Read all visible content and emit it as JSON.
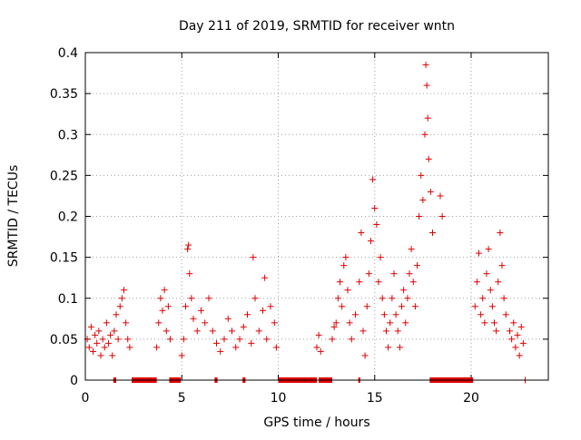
{
  "chart_data": {
    "type": "scatter",
    "title": "Day 211 of 2019, SRMTID for receiver wntn",
    "xlabel": "GPS time / hours",
    "ylabel": "SRMTID / TECUs",
    "xlim": [
      0,
      24
    ],
    "ylim": [
      0,
      0.4
    ],
    "xticks": [
      "0",
      "5",
      "10",
      "15",
      "20"
    ],
    "yticks": [
      "0",
      "0.05",
      "0.1",
      "0.15",
      "0.2",
      "0.25",
      "0.3",
      "0.35",
      "0.4"
    ],
    "grid": true,
    "marker": "+",
    "color": "#e00000",
    "series": [
      {
        "name": "SRMTID",
        "points": [
          [
            0.1,
            0.05
          ],
          [
            0.2,
            0.04
          ],
          [
            0.3,
            0.065
          ],
          [
            0.4,
            0.035
          ],
          [
            0.5,
            0.055
          ],
          [
            0.6,
            0.045
          ],
          [
            0.7,
            0.06
          ],
          [
            0.8,
            0.03
          ],
          [
            0.9,
            0.05
          ],
          [
            1.0,
            0.04
          ],
          [
            1.1,
            0.07
          ],
          [
            1.2,
            0.045
          ],
          [
            1.3,
            0.055
          ],
          [
            1.4,
            0.03
          ],
          [
            1.5,
            0.06
          ],
          [
            1.6,
            0.08
          ],
          [
            1.7,
            0.05
          ],
          [
            1.8,
            0.09
          ],
          [
            1.9,
            0.1
          ],
          [
            2.0,
            0.11
          ],
          [
            2.1,
            0.07
          ],
          [
            2.2,
            0.05
          ],
          [
            2.3,
            0.04
          ],
          [
            3.7,
            0.04
          ],
          [
            3.8,
            0.07
          ],
          [
            3.9,
            0.1
          ],
          [
            4.0,
            0.085
          ],
          [
            4.1,
            0.11
          ],
          [
            4.2,
            0.06
          ],
          [
            4.3,
            0.09
          ],
          [
            4.4,
            0.05
          ],
          [
            5.0,
            0.03
          ],
          [
            5.1,
            0.05
          ],
          [
            5.2,
            0.09
          ],
          [
            5.3,
            0.16
          ],
          [
            5.35,
            0.165
          ],
          [
            5.4,
            0.13
          ],
          [
            5.5,
            0.1
          ],
          [
            5.6,
            0.075
          ],
          [
            5.8,
            0.06
          ],
          [
            6.0,
            0.085
          ],
          [
            6.2,
            0.07
          ],
          [
            6.4,
            0.1
          ],
          [
            6.6,
            0.06
          ],
          [
            6.8,
            0.045
          ],
          [
            7.0,
            0.035
          ],
          [
            7.2,
            0.05
          ],
          [
            7.4,
            0.075
          ],
          [
            7.6,
            0.06
          ],
          [
            7.8,
            0.04
          ],
          [
            8.0,
            0.05
          ],
          [
            8.2,
            0.065
          ],
          [
            8.4,
            0.08
          ],
          [
            8.6,
            0.045
          ],
          [
            8.7,
            0.15
          ],
          [
            8.8,
            0.1
          ],
          [
            9.0,
            0.06
          ],
          [
            9.2,
            0.085
          ],
          [
            9.3,
            0.125
          ],
          [
            9.4,
            0.05
          ],
          [
            9.6,
            0.09
          ],
          [
            9.8,
            0.07
          ],
          [
            9.9,
            0.04
          ],
          [
            12.0,
            0.04
          ],
          [
            12.1,
            0.055
          ],
          [
            12.2,
            0.035
          ],
          [
            12.8,
            0.05
          ],
          [
            12.9,
            0.065
          ],
          [
            13.0,
            0.07
          ],
          [
            13.1,
            0.1
          ],
          [
            13.2,
            0.12
          ],
          [
            13.3,
            0.09
          ],
          [
            13.4,
            0.14
          ],
          [
            13.5,
            0.15
          ],
          [
            13.6,
            0.11
          ],
          [
            13.7,
            0.07
          ],
          [
            13.8,
            0.05
          ],
          [
            14.0,
            0.08
          ],
          [
            14.2,
            0.12
          ],
          [
            14.3,
            0.18
          ],
          [
            14.4,
            0.06
          ],
          [
            14.5,
            0.03
          ],
          [
            14.6,
            0.09
          ],
          [
            14.7,
            0.13
          ],
          [
            14.8,
            0.17
          ],
          [
            14.9,
            0.245
          ],
          [
            15.0,
            0.21
          ],
          [
            15.1,
            0.19
          ],
          [
            15.2,
            0.12
          ],
          [
            15.3,
            0.15
          ],
          [
            15.4,
            0.1
          ],
          [
            15.5,
            0.08
          ],
          [
            15.6,
            0.06
          ],
          [
            15.7,
            0.04
          ],
          [
            15.8,
            0.07
          ],
          [
            15.9,
            0.1
          ],
          [
            16.0,
            0.13
          ],
          [
            16.1,
            0.08
          ],
          [
            16.2,
            0.06
          ],
          [
            16.3,
            0.04
          ],
          [
            16.4,
            0.09
          ],
          [
            16.5,
            0.11
          ],
          [
            16.6,
            0.07
          ],
          [
            16.7,
            0.1
          ],
          [
            16.8,
            0.13
          ],
          [
            16.9,
            0.16
          ],
          [
            17.0,
            0.12
          ],
          [
            17.1,
            0.09
          ],
          [
            17.2,
            0.14
          ],
          [
            17.3,
            0.2
          ],
          [
            17.4,
            0.25
          ],
          [
            17.5,
            0.22
          ],
          [
            17.6,
            0.3
          ],
          [
            17.65,
            0.385
          ],
          [
            17.7,
            0.36
          ],
          [
            17.75,
            0.32
          ],
          [
            17.8,
            0.27
          ],
          [
            17.9,
            0.23
          ],
          [
            18.0,
            0.18
          ],
          [
            18.4,
            0.225
          ],
          [
            18.5,
            0.2
          ],
          [
            20.2,
            0.09
          ],
          [
            20.3,
            0.12
          ],
          [
            20.4,
            0.155
          ],
          [
            20.5,
            0.08
          ],
          [
            20.6,
            0.1
          ],
          [
            20.7,
            0.07
          ],
          [
            20.8,
            0.13
          ],
          [
            20.9,
            0.16
          ],
          [
            21.0,
            0.11
          ],
          [
            21.1,
            0.09
          ],
          [
            21.2,
            0.07
          ],
          [
            21.3,
            0.06
          ],
          [
            21.4,
            0.12
          ],
          [
            21.5,
            0.18
          ],
          [
            21.6,
            0.14
          ],
          [
            21.7,
            0.1
          ],
          [
            21.8,
            0.08
          ],
          [
            22.0,
            0.06
          ],
          [
            22.1,
            0.05
          ],
          [
            22.2,
            0.07
          ],
          [
            22.3,
            0.04
          ],
          [
            22.4,
            0.055
          ],
          [
            22.5,
            0.03
          ],
          [
            22.6,
            0.065
          ],
          [
            22.7,
            0.045
          ],
          [
            22.8,
            0.0
          ]
        ]
      }
    ],
    "zero_segments": [
      [
        1.45,
        1.6
      ],
      [
        2.4,
        3.7
      ],
      [
        4.35,
        4.95
      ],
      [
        6.7,
        6.85
      ],
      [
        8.15,
        8.3
      ],
      [
        10.0,
        12.0
      ],
      [
        12.1,
        12.8
      ],
      [
        14.15,
        14.25
      ],
      [
        17.85,
        20.1
      ]
    ]
  }
}
